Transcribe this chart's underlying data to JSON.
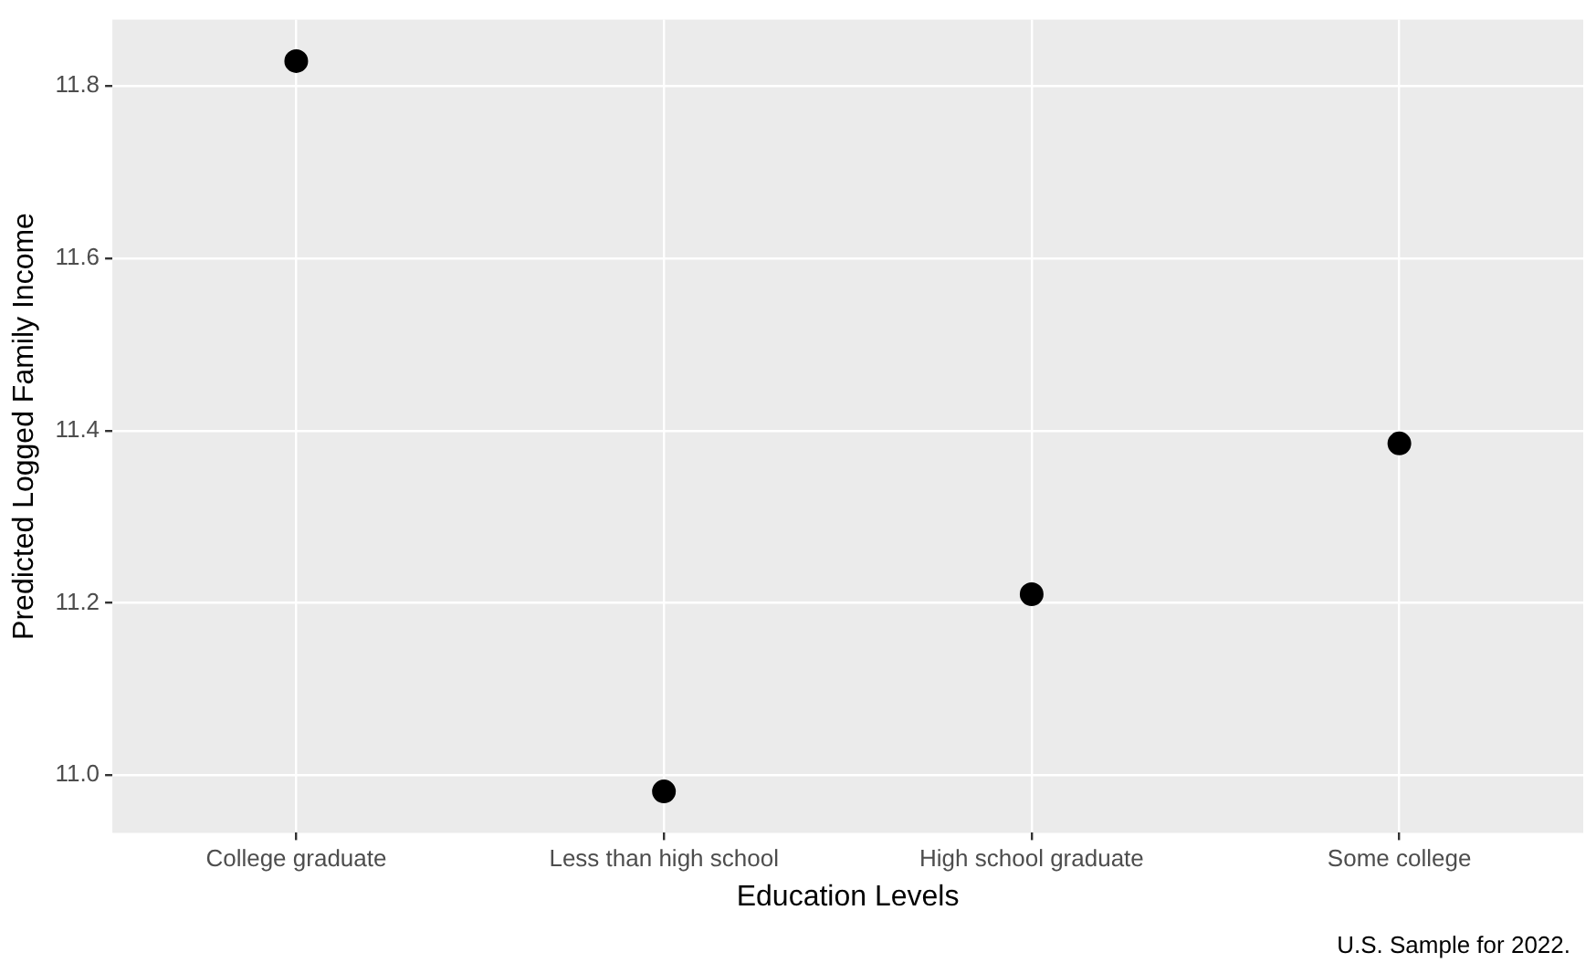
{
  "chart_data": {
    "type": "scatter",
    "xlabel": "Education Levels",
    "ylabel": "Predicted Logged Family Income",
    "categories": [
      "College graduate",
      "Less than high school",
      "High school graduate",
      "Some college"
    ],
    "series": [
      {
        "color": "#000000",
        "values": [
          11.829,
          10.981,
          11.21,
          11.385
        ]
      }
    ],
    "ylim": [
      10.933,
      11.877
    ],
    "yticks": [
      {
        "value": 11.0,
        "label": "11.0"
      },
      {
        "value": 11.2,
        "label": "11.2"
      },
      {
        "value": 11.4,
        "label": "11.4"
      },
      {
        "value": 11.6,
        "label": "11.6"
      },
      {
        "value": 11.8,
        "label": "11.8"
      }
    ],
    "grid": true,
    "legend": false,
    "marker": "circle",
    "annotations": [
      "U.S. Sample for 2022."
    ]
  }
}
